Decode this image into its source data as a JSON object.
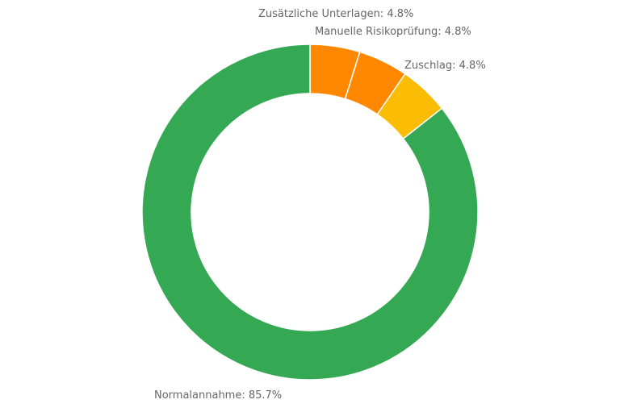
{
  "chart_data": {
    "type": "pie",
    "subtype": "donut",
    "slices": [
      {
        "label": "Zusätzliche Unterlagen",
        "value": 4.8,
        "display": "Zusätzliche Unterlagen: 4.8%",
        "color": "#ff8800"
      },
      {
        "label": "Manuelle Risikoprüfung",
        "value": 4.8,
        "display": "Manuelle Risikoprüfung: 4.8%",
        "color": "#ff8800"
      },
      {
        "label": "Zuschlag",
        "value": 4.8,
        "display": "Zuschlag: 4.8%",
        "color": "#fbbc04"
      },
      {
        "label": "Normalannahme",
        "value": 85.7,
        "display": "Normalannahme: 85.7%",
        "color": "#34a853"
      }
    ],
    "legend": "none",
    "label_color": "#666666"
  }
}
